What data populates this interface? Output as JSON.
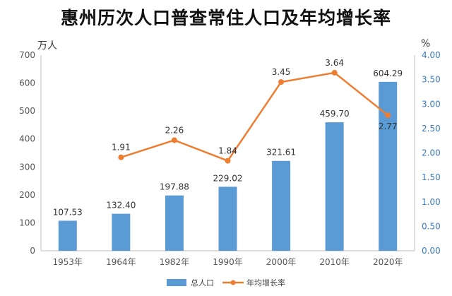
{
  "chart_data": {
    "type": "bar",
    "title": "惠州历次人口普查常住人口及年均增长率",
    "y_unit_left": "万人",
    "y_unit_right": "%",
    "categories": [
      "1953年",
      "1964年",
      "1982年",
      "1990年",
      "2000年",
      "2010年",
      "2020年"
    ],
    "series": [
      {
        "name": "总人口",
        "type": "bar",
        "axis": "left",
        "color": "#5b9bd5",
        "values": [
          107.53,
          132.4,
          197.88,
          229.02,
          321.61,
          459.7,
          604.29
        ],
        "labels": [
          "107.53",
          "132.40",
          "197.88",
          "229.02",
          "321.61",
          "459.70",
          "604.29"
        ]
      },
      {
        "name": "年均增长率",
        "type": "line",
        "axis": "right",
        "color": "#ed7d31",
        "values": [
          null,
          1.91,
          2.26,
          1.84,
          3.45,
          3.64,
          2.77
        ],
        "labels": [
          "",
          "1.91",
          "2.26",
          "1.84",
          "3.45",
          "3.64",
          "2.77"
        ]
      }
    ],
    "y_left": {
      "ylim": [
        0,
        700
      ],
      "ticks": [
        "0",
        "100",
        "200",
        "300",
        "400",
        "500",
        "600",
        "700"
      ]
    },
    "y_right": {
      "ylim": [
        0,
        4
      ],
      "ticks": [
        "0.00",
        "0.50",
        "1.00",
        "1.50",
        "2.00",
        "2.50",
        "3.00",
        "3.50",
        "4.00"
      ]
    },
    "grid": false,
    "legend_position": "bottom-center"
  }
}
